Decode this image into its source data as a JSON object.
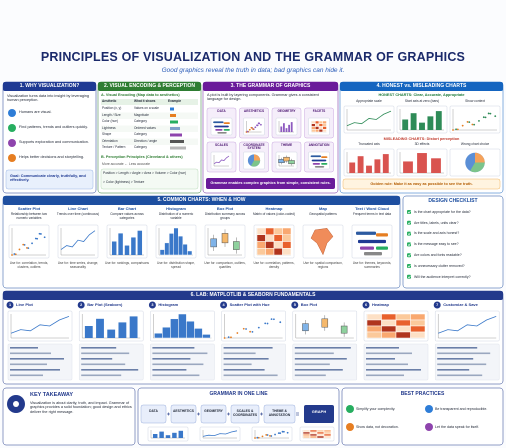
{
  "header": {
    "title": "PRINCIPLES OF VISUALIZATION AND THE GRAMMAR OF GRAPHICS",
    "subtitle": "Good graphics reveal the truth in data; bad graphics can hide it."
  },
  "why": {
    "heading": "1. WHY VISUALIZATION?",
    "intro": "Visualization turns data into insight by leveraging human perception.",
    "items": [
      "Humans are visual.",
      "Find patterns, trends and outliers quickly.",
      "Supports exploration and communication.",
      "Helps better decisions and storytelling."
    ],
    "goal": "Goal: Communicate clearly, truthfully, and effectively."
  },
  "encoding": {
    "heading": "2. VISUAL ENCODING & PERCEPTION",
    "sub_a": "A. Visual Encoding (Map data to aesthetics)",
    "columns": [
      "Aesthetic",
      "What it shows",
      "Example"
    ],
    "rows": [
      [
        "Position (x, y)",
        "Values on a scale"
      ],
      [
        "Length / Size",
        "Magnitude"
      ],
      [
        "Color (hue)",
        "Category"
      ],
      [
        "Lightness",
        "Ordered values"
      ],
      [
        "Shape",
        "Category"
      ],
      [
        "Orientation",
        "Direction / angle"
      ],
      [
        "Texture / Pattern",
        "Category"
      ]
    ],
    "sub_b": "B. Perception Principles (Cleveland & others)",
    "accuracy": "More accurate ← Less accurate",
    "order_1": "Position > Length > Angle > Area > Volume > Color (hue)",
    "order_2": "> Color (lightness) > Texture"
  },
  "grammar": {
    "heading": "3. THE GRAMMAR OF GRAPHICS",
    "intro": "A plot is built by layering components. Grammar gives a consistent language for design.",
    "components": [
      "DATA",
      "AESTHETICS",
      "GEOMETRY",
      "FACETS",
      "SCALES",
      "COORDINATE SYSTEM",
      "THEME",
      "ANNOTATION"
    ],
    "footer": "Grammar enables complex graphics from simple, consistent rules."
  },
  "honest": {
    "heading": "4. HONEST vs. MISLEADING CHARTS",
    "honest_label": "HONEST CHARTS: Clear, Accurate, Appropriate",
    "honest_charts": [
      "Appropriate scale",
      "Start axis at zero (bars)",
      "Show context"
    ],
    "misleading_label": "MISLEADING CHARTS: Distort perception",
    "misleading_charts": [
      "Truncated axis",
      "3D effects",
      "Wrong chart choice"
    ],
    "rule": "Golden rule: Make it as easy as possible to see the truth."
  },
  "common": {
    "heading": "5. COMMON CHARTS: WHEN & HOW",
    "charts": [
      {
        "name": "Scatter Plot",
        "desc": "Relationship between two numeric variables",
        "use": "Use for: correlation, trends, clusters, outliers"
      },
      {
        "name": "Line Chart",
        "desc": "Trends over time (continuous)",
        "use": "Use for: time series, change, seasonality"
      },
      {
        "name": "Bar Chart",
        "desc": "Compare values across categories",
        "use": "Use for: rankings, comparisons"
      },
      {
        "name": "Histogram",
        "desc": "Distribution of a numeric variable",
        "use": "Use for: distribution shape, spread"
      },
      {
        "name": "Box Plot",
        "desc": "Distribution summary across groups",
        "use": "Use for: comparison, outliers, quartiles"
      },
      {
        "name": "Heatmap",
        "desc": "Matrix of values (color-coded)",
        "use": "Use for: correlation, patterns, density"
      },
      {
        "name": "Map",
        "desc": "Geospatial patterns",
        "use": "Use for: spatial comparison, regions"
      },
      {
        "name": "Text / Word Cloud",
        "desc": "Frequent terms in text data",
        "use": "Use for: themes, keywords, summaries"
      }
    ]
  },
  "checklist": {
    "heading": "DESIGN CHECKLIST",
    "items": [
      "Is the chart appropriate for the data?",
      "Are titles, labels, units clear?",
      "Is the scale and axis honest?",
      "Is the message easy to see?",
      "Are colors and fonts readable?",
      "Is unnecessary clutter removed?",
      "Will the audience interpret correctly?"
    ]
  },
  "lab": {
    "heading": "6. LAB: MATPLOTLIB & SEABORN FUNDAMENTALS",
    "steps": [
      {
        "number": 1,
        "name": "Line Plot"
      },
      {
        "number": 2,
        "name": "Bar Plot (Seaborn)"
      },
      {
        "number": 3,
        "name": "Histogram"
      },
      {
        "number": 4,
        "name": "Scatter Plot with Hue"
      },
      {
        "number": 5,
        "name": "Box Plot"
      },
      {
        "number": 6,
        "name": "Heatmap"
      },
      {
        "number": 7,
        "name": "Customize & Save"
      }
    ]
  },
  "takeaway": {
    "heading": "KEY TAKEAWAY",
    "text": "Visualization is about clarity, truth, and impact. Grammar of graphics provides a solid foundation; good design and ethics deliver the right message."
  },
  "one_line": {
    "heading": "GRAMMAR IN ONE LINE",
    "terms": [
      "DATA",
      "AESTHETICS",
      "GEOMETRY",
      "SCALES & COORDINATES",
      "THEME & ANNOTATION"
    ],
    "result": "GRAPH"
  },
  "practices": {
    "heading": "BEST PRACTICES",
    "items": [
      "Simplify your complexity.",
      "Be transparent and reproducible.",
      "Show data, not decoration.",
      "Let the data speak for itself."
    ]
  }
}
